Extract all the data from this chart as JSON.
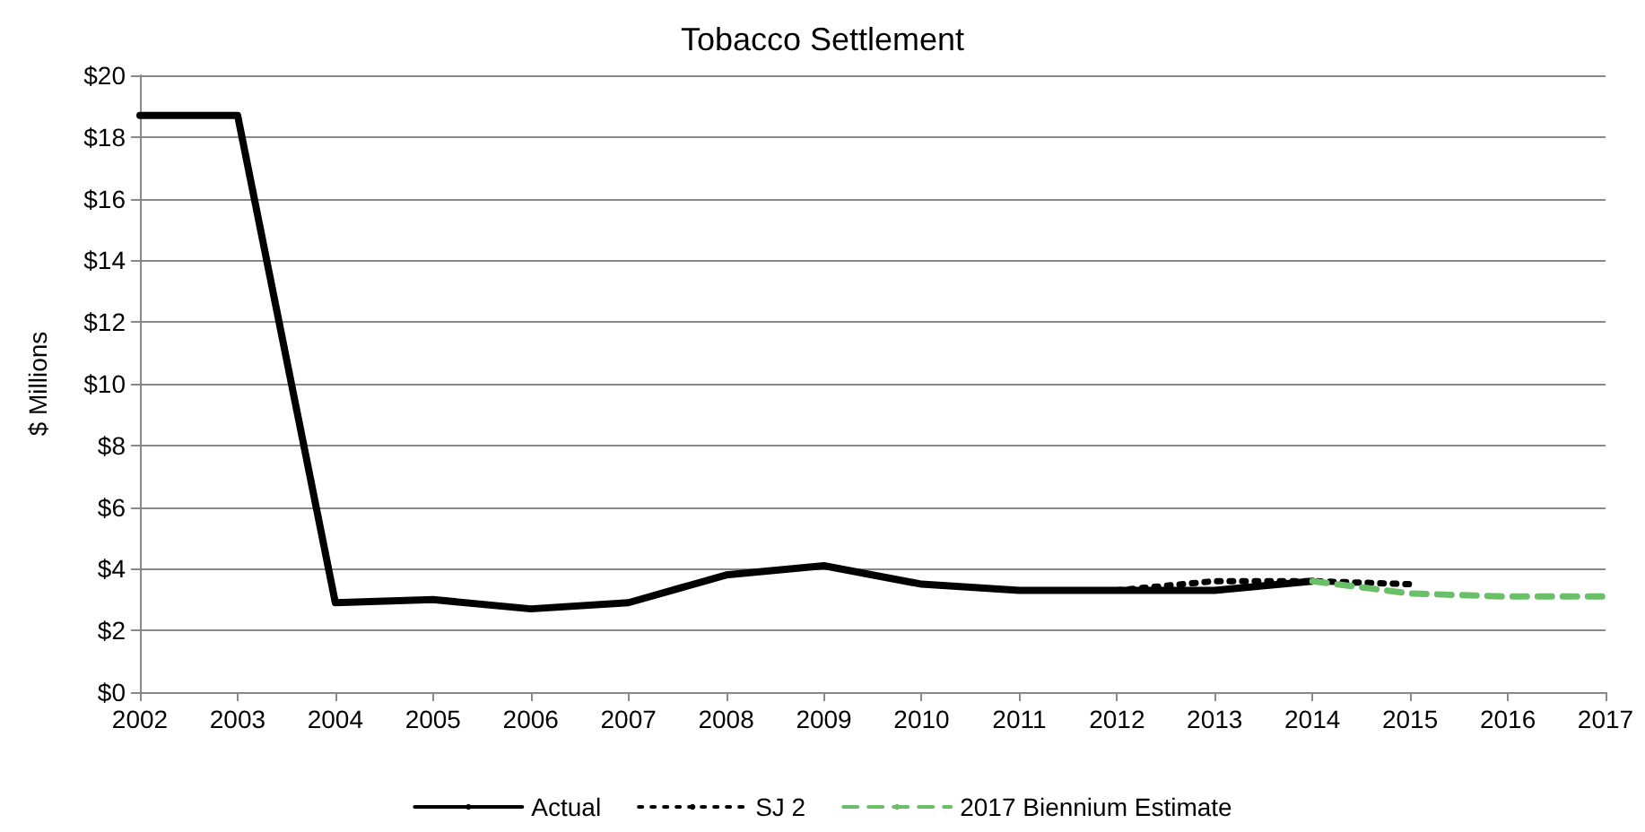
{
  "chart_data": {
    "type": "line",
    "title": "Tobacco Settlement",
    "ylabel": "$ Millions",
    "xlim": [
      2002,
      2017
    ],
    "xticks": [
      2002,
      2003,
      2004,
      2005,
      2006,
      2007,
      2008,
      2009,
      2010,
      2011,
      2012,
      2013,
      2014,
      2015,
      2016,
      2017
    ],
    "ylim": [
      0,
      20
    ],
    "yticks": [
      {
        "value": 0,
        "label": "$0"
      },
      {
        "value": 2,
        "label": "$2"
      },
      {
        "value": 4,
        "label": "$4"
      },
      {
        "value": 6,
        "label": "$6"
      },
      {
        "value": 8,
        "label": "$8"
      },
      {
        "value": 10,
        "label": "$10"
      },
      {
        "value": 12,
        "label": "$12"
      },
      {
        "value": 14,
        "label": "$14"
      },
      {
        "value": 16,
        "label": "$16"
      },
      {
        "value": 18,
        "label": "$18"
      },
      {
        "value": 20,
        "label": "$20"
      }
    ],
    "grid": "y",
    "legend": "bottom",
    "marker": "none",
    "series": [
      {
        "name": "Actual",
        "color": "#000000",
        "line_style": "solid",
        "x": [
          2002,
          2003,
          2004,
          2005,
          2006,
          2007,
          2008,
          2009,
          2010,
          2011,
          2012,
          2013,
          2014
        ],
        "values": [
          18.7,
          18.7,
          2.9,
          3.0,
          2.7,
          2.9,
          3.8,
          4.1,
          3.5,
          3.3,
          3.3,
          3.3,
          3.6
        ]
      },
      {
        "name": "SJ 2",
        "color": "#000000",
        "line_style": "dotted",
        "x": [
          2012,
          2013,
          2014,
          2015
        ],
        "values": [
          3.3,
          3.6,
          3.6,
          3.5
        ]
      },
      {
        "name": "2017 Biennium Estimate",
        "color": "#6abf69",
        "line_style": "dashed",
        "x": [
          2014,
          2015,
          2016,
          2017
        ],
        "values": [
          3.6,
          3.2,
          3.1,
          3.1
        ]
      }
    ]
  }
}
